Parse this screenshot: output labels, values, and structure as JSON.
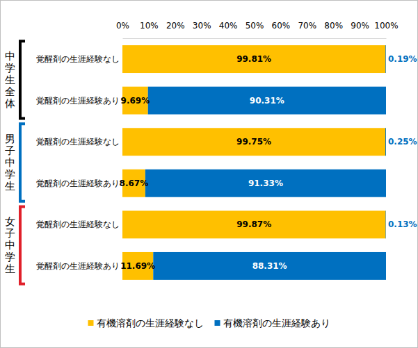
{
  "chart_data": {
    "type": "bar",
    "orientation": "horizontal",
    "stacked": true,
    "data_labels": true,
    "groups": [
      "中学生全体",
      "男子中学生",
      "女子中学生"
    ],
    "categories": [
      "覚醒剤の生涯経験なし",
      "覚醒剤の生涯経験あり",
      "覚醒剤の生涯経験なし",
      "覚醒剤の生涯経験あり",
      "覚醒剤の生涯経験なし",
      "覚醒剤の生涯経験あり"
    ],
    "series": [
      {
        "name": "有機溶剤の生涯経験なし",
        "color": "#ffc000",
        "values": [
          99.81,
          9.69,
          99.75,
          8.67,
          99.87,
          11.69
        ],
        "value_labels": [
          "99.81%",
          "9.69%",
          "99.75%",
          "8.67%",
          "99.87%",
          "11.69%"
        ]
      },
      {
        "name": "有機溶剤の生涯経験あり",
        "color": "#0070c0",
        "values": [
          0.19,
          90.31,
          0.25,
          91.33,
          0.13,
          88.31
        ],
        "value_labels": [
          "0.19%",
          "90.31%",
          "0.25%",
          "91.33%",
          "0.13%",
          "88.31%"
        ]
      }
    ],
    "xlim": [
      0,
      100
    ],
    "xticks": [
      {
        "value": 0,
        "label": "0%"
      },
      {
        "value": 10,
        "label": "10%"
      },
      {
        "value": 20,
        "label": "20%"
      },
      {
        "value": 30,
        "label": "30%"
      },
      {
        "value": 40,
        "label": "40%"
      },
      {
        "value": 50,
        "label": "50%"
      },
      {
        "value": 60,
        "label": "60%"
      },
      {
        "value": 70,
        "label": "70%"
      },
      {
        "value": 80,
        "label": "80%"
      },
      {
        "value": 90,
        "label": "90%"
      },
      {
        "value": 100,
        "label": "100%"
      }
    ],
    "grid": false,
    "legend": "bottom"
  }
}
